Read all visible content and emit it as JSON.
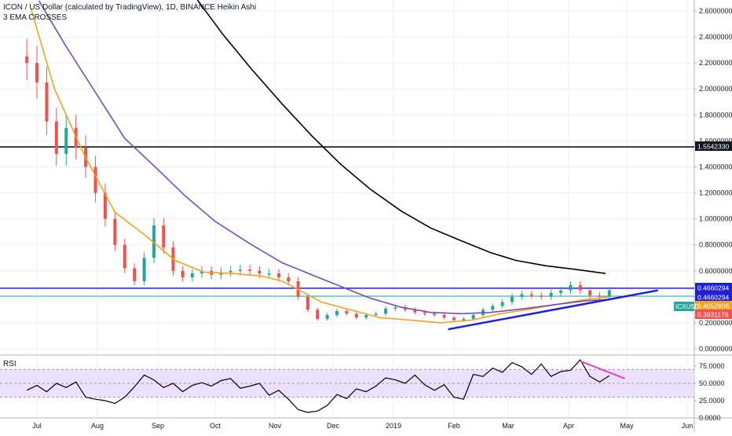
{
  "header": {
    "title": "ICON / US Dollar (calculated by TradingView), 1D, BINANCE Heikin Ashi",
    "indicator": "3 EMA CROSSES"
  },
  "colors": {
    "up_candle": "#26a69a",
    "down_candle": "#ef5350",
    "ema_fast": "#f7a21b",
    "ema_mid": "#6f4fbf",
    "ema_slow": "#000000",
    "trendline": "#1e20d6",
    "rsi_trendline": "#e040d0",
    "rsi_band": "#ede0ff",
    "grid": "#eceff4"
  },
  "chart_data": [
    {
      "type": "line",
      "panel": "price",
      "title": "ICON / US Dollar (calculated by TradingView), 1D, BINANCE Heikin Ashi",
      "y_axis_labels": [
        "2.6000000",
        "2.4000000",
        "2.2000000",
        "2.0000000",
        "1.8000000",
        "1.6000000",
        "1.4000000",
        "1.2000000",
        "1.0000000",
        "0.8000000",
        "0.6000000",
        "0.4000000",
        "0.2000000",
        "0.0000000"
      ],
      "ylim": [
        -0.02,
        2.72
      ],
      "x_axis_labels": [
        "Jul",
        "Aug",
        "Sep",
        "Oct",
        "Nov",
        "Dec",
        "2019",
        "Feb",
        "Mar",
        "Apr",
        "May",
        "Jun"
      ],
      "price_labels": [
        {
          "text": "1.5542330",
          "value": 1.554233,
          "bg": "#131722",
          "fg": "#ffffff"
        },
        {
          "text": "0.4660294",
          "value": 0.4660294,
          "bg": "#1e20d6",
          "fg": "#ffffff"
        },
        {
          "text": "0.4660294",
          "value": 0.4660294,
          "bg": "#1e20d6",
          "fg": "#ffffff"
        },
        {
          "text": "0.4052806",
          "value": 0.4052806,
          "bg": "#f7a21b",
          "fg": "#ffffff"
        },
        {
          "text": "0.3931176",
          "value": 0.3931176,
          "bg": "#ef5350",
          "fg": "#ffffff"
        }
      ],
      "symbol_tag": "ICXUSD",
      "horizontal_lines": [
        {
          "value": 1.554233,
          "color": "#000000"
        },
        {
          "value": 0.4660294,
          "color": "#1e20d6"
        },
        {
          "value": 0.4052806,
          "color": "#26a69a"
        }
      ],
      "trendline": {
        "from": [
          "2019-01-29",
          0.15
        ],
        "to": [
          "2019-05-17",
          0.45
        ]
      },
      "series": [
        {
          "name": "EMA fast",
          "color": "#f7a21b",
          "x": [
            "2018-06-28",
            "2018-07-10",
            "2018-07-25",
            "2018-08-10",
            "2018-08-25",
            "2018-09-10",
            "2018-09-25",
            "2018-10-10",
            "2018-10-25",
            "2018-11-05",
            "2018-11-15",
            "2018-11-25",
            "2018-12-10",
            "2018-12-25",
            "2019-01-10",
            "2019-01-25",
            "2019-02-10",
            "2019-02-25",
            "2019-03-10",
            "2019-03-25",
            "2019-04-10",
            "2019-04-22"
          ],
          "values": [
            2.62,
            2.0,
            1.5,
            1.05,
            0.88,
            0.68,
            0.59,
            0.58,
            0.56,
            0.52,
            0.44,
            0.36,
            0.3,
            0.24,
            0.22,
            0.2,
            0.22,
            0.27,
            0.3,
            0.34,
            0.38,
            0.4
          ]
        },
        {
          "name": "EMA mid",
          "color": "#6f4fbf",
          "x": [
            "2018-07-02",
            "2018-07-15",
            "2018-08-01",
            "2018-08-15",
            "2018-09-01",
            "2018-09-15",
            "2018-10-01",
            "2018-10-20",
            "2018-11-05",
            "2018-11-20",
            "2018-12-05",
            "2018-12-20",
            "2019-01-05",
            "2019-01-20",
            "2019-02-05",
            "2019-02-20",
            "2019-03-10",
            "2019-03-25",
            "2019-04-10",
            "2019-04-22"
          ],
          "values": [
            2.68,
            2.35,
            1.95,
            1.62,
            1.38,
            1.18,
            0.98,
            0.8,
            0.66,
            0.57,
            0.48,
            0.39,
            0.32,
            0.28,
            0.27,
            0.28,
            0.31,
            0.34,
            0.37,
            0.38
          ]
        },
        {
          "name": "EMA slow",
          "color": "#000000",
          "x": [
            "2018-09-20",
            "2018-10-05",
            "2018-10-20",
            "2018-11-05",
            "2018-11-20",
            "2018-12-05",
            "2018-12-20",
            "2019-01-05",
            "2019-01-20",
            "2019-02-05",
            "2019-02-20",
            "2019-03-05",
            "2019-03-20",
            "2019-04-05",
            "2019-04-20"
          ],
          "values": [
            2.72,
            2.42,
            2.15,
            1.88,
            1.64,
            1.42,
            1.23,
            1.06,
            0.93,
            0.83,
            0.74,
            0.68,
            0.64,
            0.61,
            0.58
          ]
        }
      ],
      "candles_close": {
        "x": [
          "2018-06-26",
          "2018-07-01",
          "2018-07-06",
          "2018-07-11",
          "2018-07-16",
          "2018-07-21",
          "2018-07-26",
          "2018-07-31",
          "2018-08-05",
          "2018-08-10",
          "2018-08-15",
          "2018-08-20",
          "2018-08-25",
          "2018-08-30",
          "2018-09-04",
          "2018-09-09",
          "2018-09-14",
          "2018-09-19",
          "2018-09-24",
          "2018-09-29",
          "2018-10-04",
          "2018-10-09",
          "2018-10-14",
          "2018-10-19",
          "2018-10-24",
          "2018-10-29",
          "2018-11-03",
          "2018-11-08",
          "2018-11-13",
          "2018-11-18",
          "2018-11-23",
          "2018-11-28",
          "2018-12-03",
          "2018-12-08",
          "2018-12-13",
          "2018-12-18",
          "2018-12-23",
          "2018-12-28",
          "2019-01-02",
          "2019-01-07",
          "2019-01-12",
          "2019-01-17",
          "2019-01-22",
          "2019-01-27",
          "2019-02-01",
          "2019-02-06",
          "2019-02-11",
          "2019-02-16",
          "2019-02-21",
          "2019-02-26",
          "2019-03-03",
          "2019-03-08",
          "2019-03-13",
          "2019-03-18",
          "2019-03-23",
          "2019-03-28",
          "2019-04-02",
          "2019-04-07",
          "2019-04-12",
          "2019-04-17",
          "2019-04-22"
        ],
        "values": [
          2.2,
          2.05,
          1.75,
          1.5,
          1.7,
          1.55,
          1.4,
          1.2,
          1.0,
          0.8,
          0.62,
          0.52,
          0.7,
          0.95,
          0.78,
          0.6,
          0.55,
          0.58,
          0.6,
          0.57,
          0.59,
          0.6,
          0.61,
          0.6,
          0.58,
          0.58,
          0.55,
          0.52,
          0.4,
          0.3,
          0.23,
          0.26,
          0.29,
          0.27,
          0.24,
          0.26,
          0.27,
          0.31,
          0.32,
          0.3,
          0.28,
          0.27,
          0.26,
          0.24,
          0.22,
          0.23,
          0.26,
          0.3,
          0.33,
          0.36,
          0.4,
          0.42,
          0.41,
          0.4,
          0.43,
          0.45,
          0.49,
          0.45,
          0.41,
          0.4,
          0.45
        ]
      }
    },
    {
      "type": "line",
      "panel": "rsi",
      "title": "RSI",
      "y_axis_labels": [
        "75.0000",
        "50.0000",
        "25.0000",
        "0.0000"
      ],
      "ylim": [
        -3,
        98
      ],
      "band": [
        30,
        70
      ],
      "rsi_trendline": {
        "from": [
          "2019-04-07",
          82
        ],
        "to": [
          "2019-04-30",
          57
        ]
      },
      "series": [
        {
          "name": "RSI",
          "color": "#000000",
          "x": [
            "2018-06-26",
            "2018-07-01",
            "2018-07-06",
            "2018-07-11",
            "2018-07-16",
            "2018-07-21",
            "2018-07-26",
            "2018-07-31",
            "2018-08-05",
            "2018-08-10",
            "2018-08-15",
            "2018-08-20",
            "2018-08-25",
            "2018-08-30",
            "2018-09-04",
            "2018-09-09",
            "2018-09-14",
            "2018-09-19",
            "2018-09-24",
            "2018-09-29",
            "2018-10-04",
            "2018-10-09",
            "2018-10-14",
            "2018-10-19",
            "2018-10-24",
            "2018-10-29",
            "2018-11-03",
            "2018-11-08",
            "2018-11-13",
            "2018-11-18",
            "2018-11-23",
            "2018-11-28",
            "2018-12-03",
            "2018-12-08",
            "2018-12-13",
            "2018-12-18",
            "2018-12-23",
            "2018-12-28",
            "2019-01-02",
            "2019-01-07",
            "2019-01-12",
            "2019-01-17",
            "2019-01-22",
            "2019-01-27",
            "2019-02-01",
            "2019-02-06",
            "2019-02-11",
            "2019-02-16",
            "2019-02-21",
            "2019-02-26",
            "2019-03-03",
            "2019-03-08",
            "2019-03-13",
            "2019-03-18",
            "2019-03-23",
            "2019-03-28",
            "2019-04-02",
            "2019-04-07",
            "2019-04-12",
            "2019-04-17",
            "2019-04-22"
          ],
          "values": [
            40,
            47,
            38,
            50,
            44,
            52,
            30,
            27,
            25,
            21,
            30,
            45,
            62,
            55,
            44,
            50,
            38,
            47,
            51,
            46,
            54,
            57,
            43,
            46,
            50,
            33,
            40,
            27,
            12,
            8,
            10,
            18,
            34,
            28,
            42,
            38,
            46,
            58,
            55,
            50,
            62,
            48,
            40,
            48,
            30,
            27,
            63,
            60,
            72,
            66,
            80,
            74,
            63,
            78,
            60,
            67,
            69,
            84,
            60,
            52,
            61
          ]
        }
      ],
      "x_axis_labels": [
        "Jul",
        "Aug",
        "Sep",
        "Oct",
        "Nov",
        "Dec",
        "2019",
        "Feb",
        "Mar",
        "Apr",
        "May",
        "Jun"
      ]
    }
  ]
}
